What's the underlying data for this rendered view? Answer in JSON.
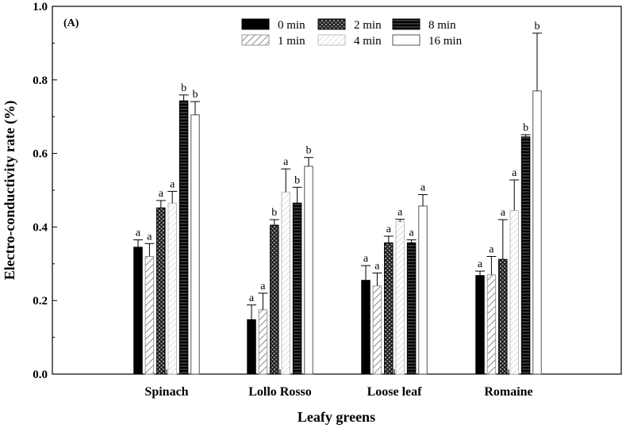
{
  "chart_data": {
    "type": "bar",
    "panel_label": "(A)",
    "xlabel": "Leafy greens",
    "ylabel": "Electro-conductivity rate (%)",
    "ylim": [
      0,
      1.0
    ],
    "yticks": [
      "0.0",
      "0.2",
      "0.4",
      "0.6",
      "0.8",
      "1.0"
    ],
    "categories": [
      "Spinach",
      "Lollo Rosso",
      "Loose leaf",
      "Romaine"
    ],
    "legend_position": "top-center",
    "series": [
      {
        "name": "0 min",
        "values": [
          0.345,
          0.148,
          0.255,
          0.268
        ],
        "errors": [
          0.02,
          0.04,
          0.04,
          0.012
        ],
        "labels": [
          "a",
          "a",
          "a",
          "a"
        ]
      },
      {
        "name": "1 min",
        "values": [
          0.32,
          0.175,
          0.24,
          0.27
        ],
        "errors": [
          0.035,
          0.045,
          0.035,
          0.05
        ],
        "labels": [
          "a",
          "a",
          "a",
          "a"
        ]
      },
      {
        "name": "2 min",
        "values": [
          0.452,
          0.405,
          0.357,
          0.312
        ],
        "errors": [
          0.02,
          0.015,
          0.018,
          0.108
        ],
        "labels": [
          "a",
          "b",
          "a",
          "a"
        ]
      },
      {
        "name": "4 min",
        "values": [
          0.465,
          0.495,
          0.415,
          0.445
        ],
        "errors": [
          0.032,
          0.063,
          0.006,
          0.083
        ],
        "labels": [
          "a",
          "a",
          "a",
          "a"
        ]
      },
      {
        "name": "8 min",
        "values": [
          0.743,
          0.465,
          0.357,
          0.645
        ],
        "errors": [
          0.016,
          0.043,
          0.008,
          0.006
        ],
        "labels": [
          "b",
          "b",
          "a",
          "b"
        ]
      },
      {
        "name": "16 min",
        "values": [
          0.705,
          0.565,
          0.457,
          0.77
        ],
        "errors": [
          0.036,
          0.024,
          0.031,
          0.157
        ],
        "labels": [
          "b",
          "b",
          "a",
          "b"
        ]
      }
    ]
  },
  "colors": {
    "series_0": "#000000",
    "series_1": "#ffffff",
    "series_2": "#3a3a3a",
    "series_3": "#ffffff",
    "series_4": "#111111",
    "series_5": "#ffffff"
  }
}
